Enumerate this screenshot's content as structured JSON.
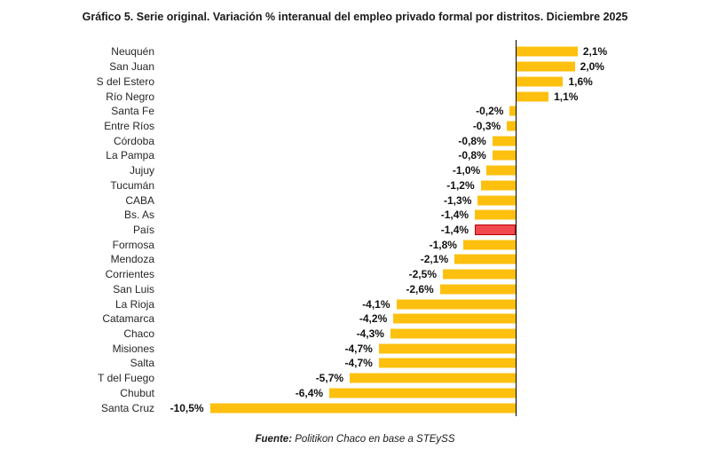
{
  "title": "Gráfico 5. Serie original. Variación % interanual del empleo privado formal por distritos. Diciembre 2025",
  "source": {
    "prefix": "Fuente:",
    "text": " Politikon Chaco en base a STEySS"
  },
  "colors": {
    "bar": "#FDC00F",
    "highlight_fill": "#F2494F",
    "highlight_border": "#B30000",
    "axis": "#000000"
  },
  "chart_data": {
    "type": "bar",
    "orientation": "horizontal",
    "title": "Gráfico 5. Serie original. Variación % interanual del empleo privado formal por distritos. Diciembre 2025",
    "xlabel": "",
    "ylabel": "",
    "unit": "%",
    "xlim": [
      -10.5,
      2.1
    ],
    "grid": false,
    "legend": false,
    "highlight_category": "País",
    "categories": [
      "Neuquén",
      "San Juan",
      "S del Estero",
      "Río Negro",
      "Santa Fe",
      "Entre Ríos",
      "Córdoba",
      "La Pampa",
      "Jujuy",
      "Tucumán",
      "CABA",
      "Bs. As",
      "País",
      "Formosa",
      "Mendoza",
      "Corrientes",
      "San Luis",
      "La Rioja",
      "Catamarca",
      "Chaco",
      "Misiones",
      "Salta",
      "T del Fuego",
      "Chubut",
      "Santa Cruz"
    ],
    "values": [
      2.1,
      2.0,
      1.6,
      1.1,
      -0.2,
      -0.3,
      -0.8,
      -0.8,
      -1.0,
      -1.2,
      -1.3,
      -1.4,
      -1.4,
      -1.8,
      -2.1,
      -2.5,
      -2.6,
      -4.1,
      -4.2,
      -4.3,
      -4.7,
      -4.7,
      -5.7,
      -6.4,
      -10.5
    ],
    "value_labels": [
      "2,1%",
      "2,0%",
      "1,6%",
      "1,1%",
      "-0,2%",
      "-0,3%",
      "-0,8%",
      "-0,8%",
      "-1,0%",
      "-1,2%",
      "-1,3%",
      "-1,4%",
      "-1,4%",
      "-1,8%",
      "-2,1%",
      "-2,5%",
      "-2,6%",
      "-4,1%",
      "-4,2%",
      "-4,3%",
      "-4,7%",
      "-4,7%",
      "-5,7%",
      "-6,4%",
      "-10,5%"
    ]
  }
}
